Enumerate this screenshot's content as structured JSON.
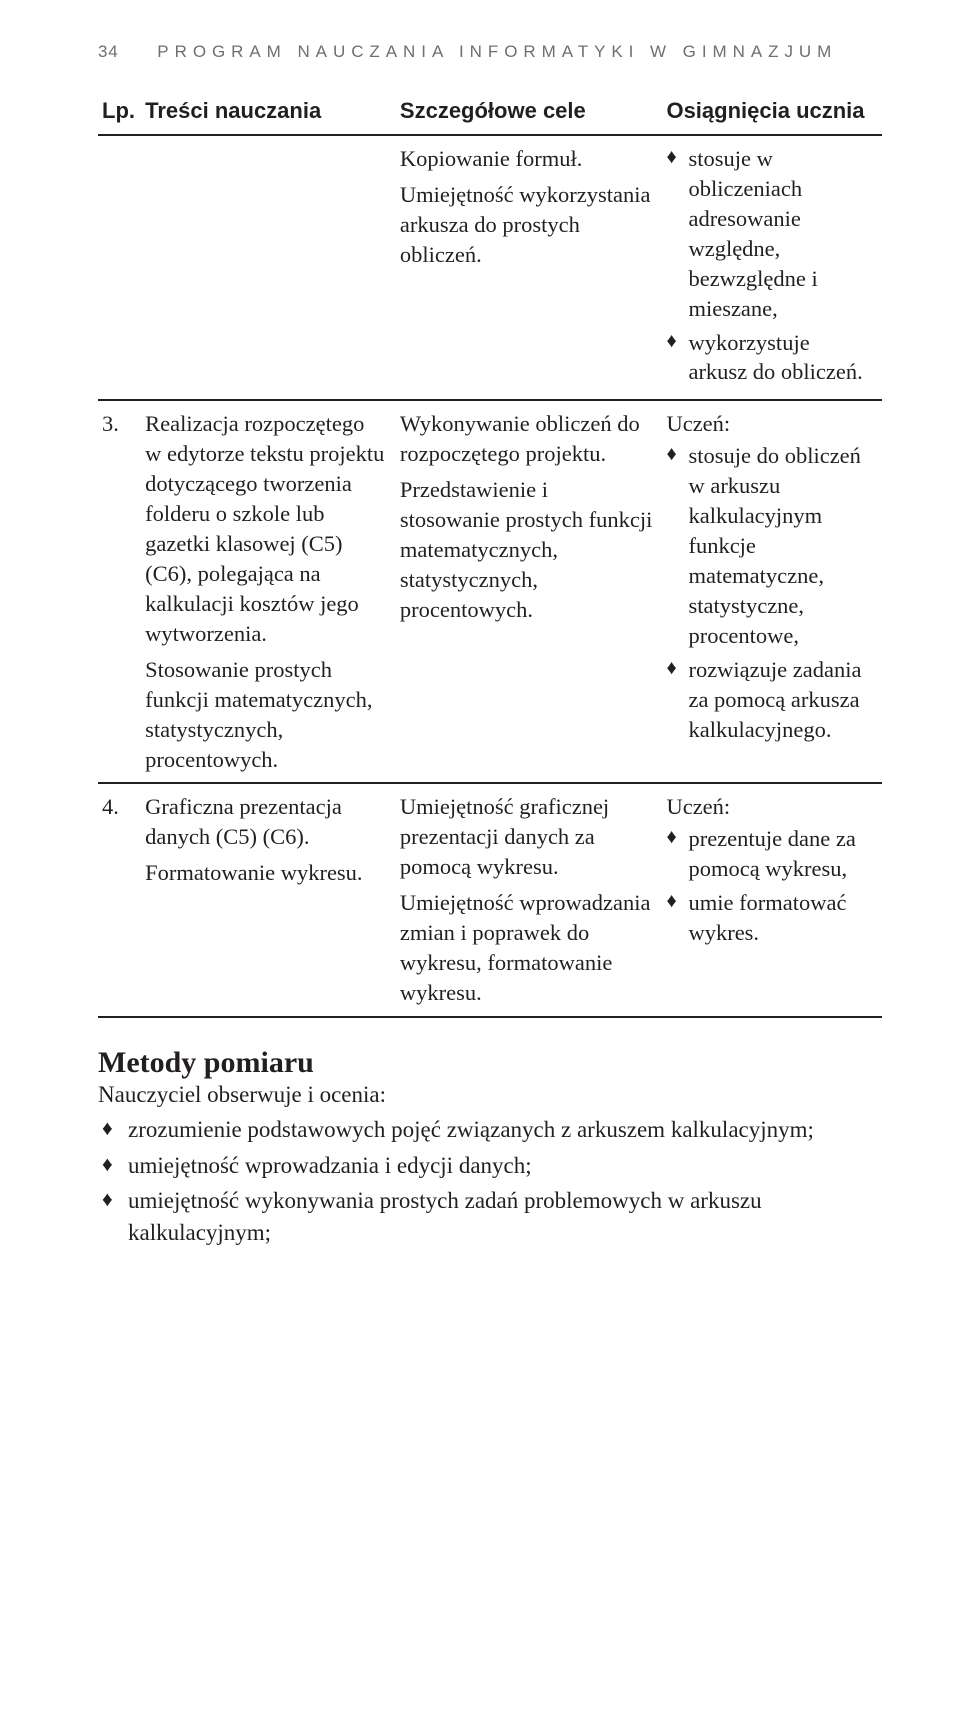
{
  "header": {
    "page_number": "34",
    "running_title": "Program nauczania informatyki w gimnazjum"
  },
  "table": {
    "columns": {
      "lp": "Lp.",
      "c1": "Treści nauczania",
      "c2": "Szczegółowe cele",
      "c3": "Osiągnięcia ucznia"
    },
    "rows": [
      {
        "lp": "",
        "c1": "",
        "c2_p1": "Kopiowanie formuł.",
        "c2_p2": "Umiejętność wykorzystania arkusza do prostych obliczeń.",
        "c3_b1": "stosuje w obliczeniach adresowanie względne, bezwzględne i mieszane,",
        "c3_b2": "wykorzystuje arkusz do obliczeń."
      },
      {
        "lp": "3.",
        "c1_p1": "Realizacja rozpoczętego w edytorze tekstu projektu dotyczącego tworzenia folderu o szkole lub gazetki klasowej (C5) (C6), polegająca na kalkulacji kosztów jego wytworzenia.",
        "c1_p2": "Stosowanie prostych funkcji matematycznych, statystycznych, procentowych.",
        "c2_p1": "Wykonywanie obliczeń do rozpoczętego projektu.",
        "c2_p2": "Przedstawienie i stosowanie prostych funkcji matematycznych, statystycznych, procentowych.",
        "c3_lead": "Uczeń:",
        "c3_b1": "stosuje do obliczeń w arkuszu kalkulacyjnym funkcje matematyczne, statystyczne, procentowe,",
        "c3_b2": "rozwiązuje zadania za pomocą arkusza kalkulacyjnego."
      },
      {
        "lp": "4.",
        "c1_p1": "Graficzna prezentacja danych (C5) (C6).",
        "c1_p2": "Formatowanie wykresu.",
        "c2_p1": "Umiejętność graficznej prezentacji danych za pomocą wykresu.",
        "c2_p2": "Umiejętność wprowadzania zmian i poprawek do wykresu, formatowanie wykresu.",
        "c3_lead": "Uczeń:",
        "c3_b1": "prezentuje dane za pomocą wykresu,",
        "c3_b2": "umie formatować wykres."
      }
    ]
  },
  "section": {
    "heading": "Metody pomiaru",
    "sub": "Nauczyciel obserwuje i ocenia:",
    "bullets": {
      "b1": "zrozumienie podstawowych pojęć związanych z arkuszem kalkulacyjnym;",
      "b2": "umiejętność wprowadzania i edycji danych;",
      "b3": "umiejętność wykonywania prostych zadań problemowych w arkuszu kalkulacyjnym;"
    }
  }
}
